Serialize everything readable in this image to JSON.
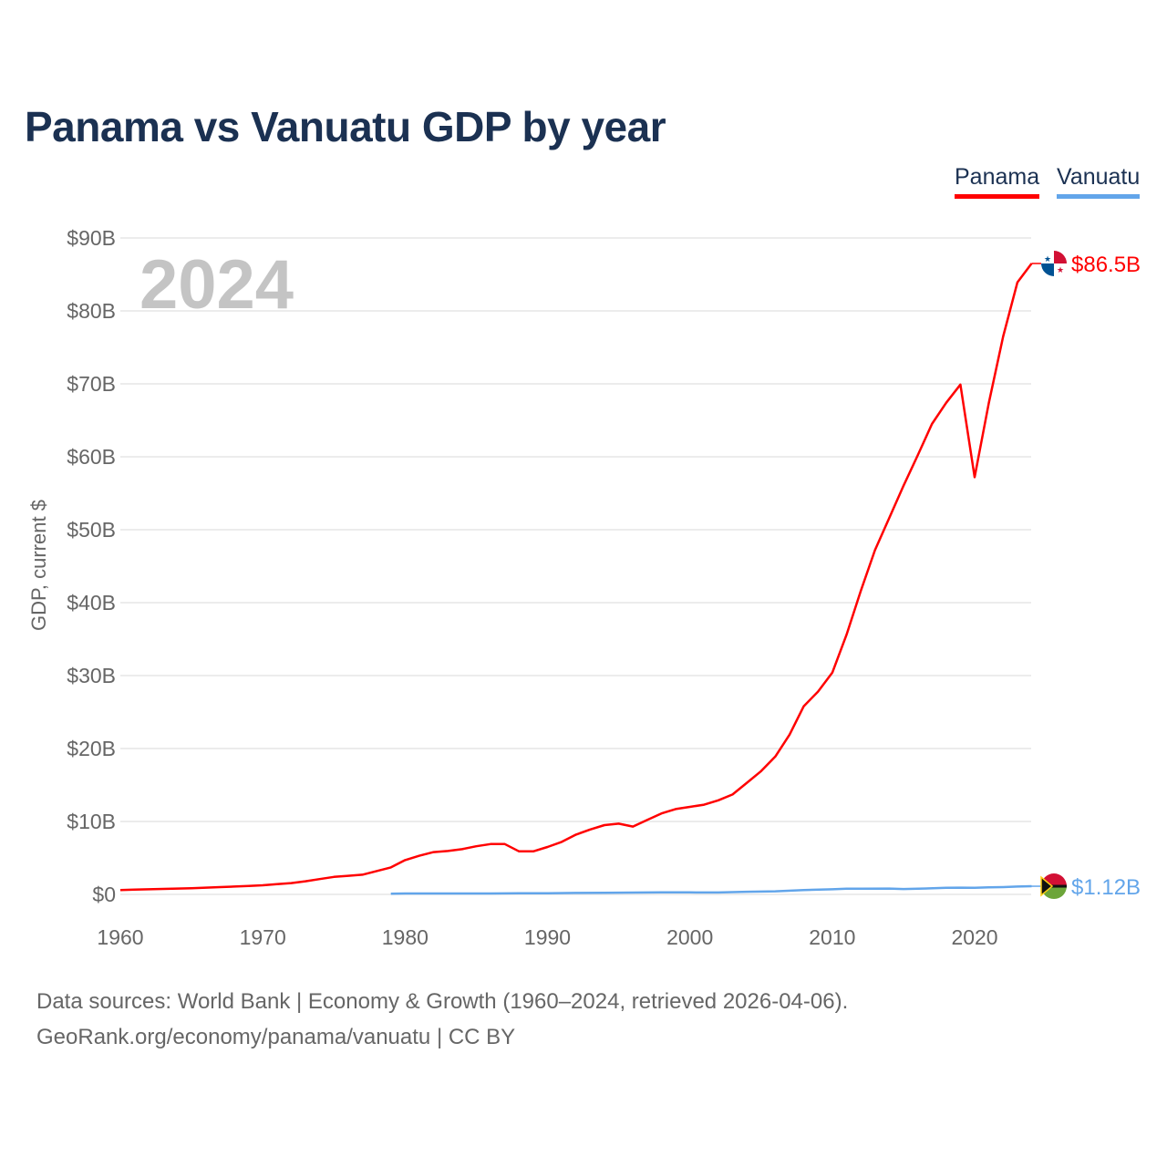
{
  "title": "Panama vs Vanuatu GDP by year",
  "legend": [
    {
      "name": "Panama",
      "color": "#ff0000"
    },
    {
      "name": "Vanuatu",
      "color": "#62a5ea"
    }
  ],
  "year_watermark": "2024",
  "footer": {
    "line1": "Data sources: World Bank | Economy & Growth (1960–2024, retrieved 2026-04-06).",
    "line2": "GeoRank.org/economy/panama/vanuatu | CC BY"
  },
  "chart_data": {
    "type": "line",
    "title": "Panama vs Vanuatu GDP by year",
    "xlabel": "",
    "ylabel": "GDP, current $",
    "xlim": [
      1960,
      2024
    ],
    "ylim": [
      0,
      90
    ],
    "grid": true,
    "legend_placement": "top-right",
    "x_ticks": [
      1960,
      1970,
      1980,
      1990,
      2000,
      2010,
      2020
    ],
    "x_tick_labels": [
      "1960",
      "1970",
      "1980",
      "1990",
      "2000",
      "2010",
      "2020"
    ],
    "y_ticks": [
      0,
      10,
      20,
      30,
      40,
      50,
      60,
      70,
      80,
      90
    ],
    "y_tick_labels": [
      "$0",
      "$10B",
      "$20B",
      "$30B",
      "$40B",
      "$50B",
      "$60B",
      "$70B",
      "$80B",
      "$90B"
    ],
    "series": [
      {
        "name": "Panama",
        "color": "#ff0000",
        "end_label": "$86.5B",
        "x": [
          1960,
          1961,
          1962,
          1963,
          1964,
          1965,
          1966,
          1967,
          1968,
          1969,
          1970,
          1971,
          1972,
          1973,
          1974,
          1975,
          1976,
          1977,
          1978,
          1979,
          1980,
          1981,
          1982,
          1983,
          1984,
          1985,
          1986,
          1987,
          1988,
          1989,
          1990,
          1991,
          1992,
          1993,
          1994,
          1995,
          1996,
          1997,
          1998,
          1999,
          2000,
          2001,
          2002,
          2003,
          2004,
          2005,
          2006,
          2007,
          2008,
          2009,
          2010,
          2011,
          2012,
          2013,
          2014,
          2015,
          2016,
          2017,
          2018,
          2019,
          2020,
          2021,
          2022,
          2023,
          2024
        ],
        "values": [
          0.6,
          0.65,
          0.7,
          0.75,
          0.8,
          0.85,
          0.92,
          1.0,
          1.07,
          1.15,
          1.25,
          1.4,
          1.55,
          1.8,
          2.1,
          2.4,
          2.55,
          2.7,
          3.2,
          3.7,
          4.7,
          5.3,
          5.8,
          5.95,
          6.2,
          6.6,
          6.9,
          6.9,
          5.9,
          5.9,
          6.5,
          7.2,
          8.2,
          8.9,
          9.5,
          9.7,
          9.3,
          10.2,
          11.1,
          11.7,
          12.0,
          12.3,
          12.9,
          13.7,
          15.3,
          16.9,
          18.9,
          21.9,
          25.8,
          27.8,
          30.4,
          35.6,
          41.6,
          47.2,
          51.6,
          56.0,
          60.2,
          64.5,
          67.4,
          69.9,
          57.2,
          67.4,
          76.5,
          83.9,
          86.5
        ]
      },
      {
        "name": "Vanuatu",
        "color": "#62a5ea",
        "end_label": "$1.12B",
        "x": [
          1979,
          1980,
          1982,
          1984,
          1986,
          1988,
          1990,
          1992,
          1994,
          1996,
          1998,
          2000,
          2002,
          2004,
          2006,
          2008,
          2010,
          2011,
          2012,
          2014,
          2015,
          2016,
          2018,
          2019,
          2020,
          2021,
          2022,
          2023,
          2024
        ],
        "values": [
          0.1,
          0.12,
          0.12,
          0.13,
          0.13,
          0.15,
          0.15,
          0.2,
          0.22,
          0.25,
          0.27,
          0.27,
          0.26,
          0.36,
          0.43,
          0.6,
          0.7,
          0.79,
          0.78,
          0.8,
          0.74,
          0.78,
          0.9,
          0.93,
          0.9,
          0.96,
          1.0,
          1.07,
          1.12
        ]
      }
    ]
  }
}
